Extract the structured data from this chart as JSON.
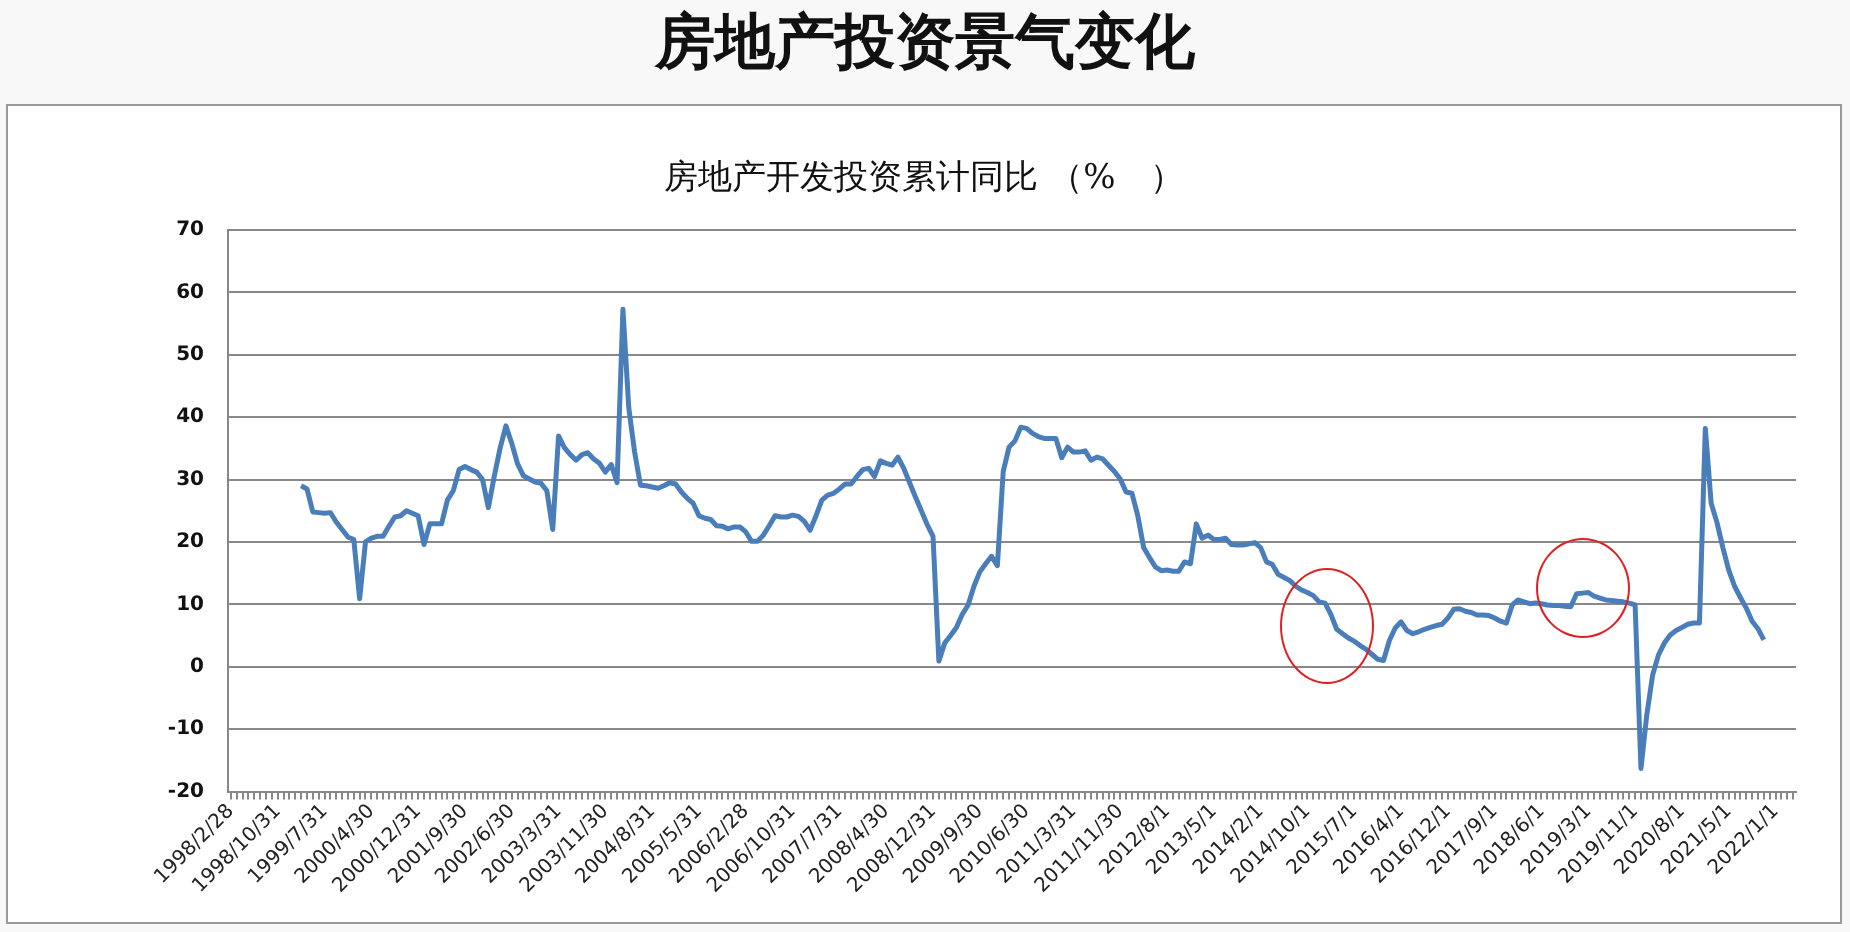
{
  "chart_data": {
    "type": "line",
    "title": "房地产投资景气变化",
    "subtitle": "房地产开发投资累计同比 （%　）",
    "categories": [
      "1998/2/28",
      null,
      null,
      null,
      null,
      null,
      null,
      null,
      "1998/10/31",
      null,
      null,
      null,
      null,
      null,
      null,
      null,
      "1999/7/31",
      null,
      null,
      null,
      null,
      null,
      null,
      null,
      "2000/4/30",
      null,
      null,
      null,
      null,
      null,
      null,
      null,
      "2000/12/31",
      null,
      null,
      null,
      null,
      null,
      null,
      null,
      "2001/9/30",
      null,
      null,
      null,
      null,
      null,
      null,
      null,
      "2002/6/30",
      null,
      null,
      null,
      null,
      null,
      null,
      null,
      "2003/3/31",
      null,
      null,
      null,
      null,
      null,
      null,
      null,
      "2003/11/30",
      null,
      null,
      null,
      null,
      null,
      null,
      null,
      "2004/8/31",
      null,
      null,
      null,
      null,
      null,
      null,
      null,
      "2005/5/31",
      null,
      null,
      null,
      null,
      null,
      null,
      null,
      "2006/2/28",
      null,
      null,
      null,
      null,
      null,
      null,
      null,
      "2006/10/31",
      null,
      null,
      null,
      null,
      null,
      null,
      null,
      "2007/7/31",
      null,
      null,
      null,
      null,
      null,
      null,
      null,
      "2008/4/30",
      null,
      null,
      null,
      null,
      null,
      null,
      null,
      "2008/12/31",
      null,
      null,
      null,
      null,
      null,
      null,
      null,
      "2009/9/30",
      null,
      null,
      null,
      null,
      null,
      null,
      null,
      "2010/6/30",
      null,
      null,
      null,
      null,
      null,
      null,
      null,
      "2011/3/31",
      null,
      null,
      null,
      null,
      null,
      null,
      null,
      "2011/11/30",
      null,
      null,
      null,
      null,
      null,
      null,
      null,
      "2012/8/1",
      null,
      null,
      null,
      null,
      null,
      null,
      null,
      "2013/5/1",
      null,
      null,
      null,
      null,
      null,
      null,
      null,
      "2014/2/1",
      null,
      null,
      null,
      null,
      null,
      null,
      null,
      "2014/10/1",
      null,
      null,
      null,
      null,
      null,
      null,
      null,
      "2015/7/1",
      null,
      null,
      null,
      null,
      null,
      null,
      null,
      "2016/4/1",
      null,
      null,
      null,
      null,
      null,
      null,
      null,
      "2016/12/1",
      null,
      null,
      null,
      null,
      null,
      null,
      null,
      "2017/9/1",
      null,
      null,
      null,
      null,
      null,
      null,
      null,
      "2018/6/1",
      null,
      null,
      null,
      null,
      null,
      null,
      null,
      "2019/3/1",
      null,
      null,
      null,
      null,
      null,
      null,
      null,
      "2019/11/1",
      null,
      null,
      null,
      null,
      null,
      null,
      null,
      "2020/8/1",
      null,
      null,
      null,
      null,
      null,
      null,
      null,
      "2021/5/1",
      null,
      null,
      null,
      null,
      null,
      null,
      null,
      "2022/1/1",
      null,
      null,
      null
    ],
    "series": [
      {
        "color": "#4a7ebb",
        "values": [
          null,
          null,
          null,
          null,
          null,
          null,
          null,
          null,
          null,
          null,
          null,
          null,
          29.0,
          28.5,
          24.8,
          24.7,
          24.6,
          24.7,
          23.2,
          22.0,
          20.8,
          20.4,
          10.9,
          20.0,
          20.6,
          20.9,
          20.9,
          22.5,
          24.0,
          24.2,
          25.0,
          24.6,
          24.2,
          19.6,
          22.9,
          22.9,
          22.9,
          26.7,
          28.2,
          31.6,
          32.1,
          31.6,
          31.2,
          30.0,
          25.5,
          30.5,
          35.0,
          38.6,
          35.8,
          32.5,
          30.6,
          30.1,
          29.6,
          29.4,
          28.2,
          22.0,
          37.0,
          35.1,
          34.0,
          33.1,
          34.0,
          34.3,
          33.3,
          32.6,
          31.2,
          32.4,
          29.5,
          57.3,
          41.5,
          34.4,
          29.1,
          29.0,
          28.8,
          28.6,
          29.0,
          29.5,
          29.3,
          28.0,
          27.0,
          26.2,
          24.2,
          23.8,
          23.6,
          22.6,
          22.5,
          22.1,
          22.4,
          22.4,
          21.6,
          20.1,
          20.1,
          21.1,
          22.6,
          24.2,
          24.0,
          24.0,
          24.3,
          24.1,
          23.3,
          21.9,
          24.2,
          26.7,
          27.5,
          27.8,
          28.5,
          29.3,
          29.3,
          30.5,
          31.6,
          31.8,
          30.5,
          33.0,
          32.6,
          32.3,
          33.6,
          31.8,
          29.5,
          27.2,
          25.0,
          22.8,
          20.9,
          0.9,
          3.8,
          5.0,
          6.3,
          8.4,
          9.9,
          12.9,
          15.2,
          16.5,
          17.7,
          16.2,
          31.3,
          35.2,
          36.2,
          38.4,
          38.2,
          37.4,
          36.9,
          36.6,
          36.6,
          36.6,
          33.5,
          35.2,
          34.4,
          34.4,
          34.6,
          33.1,
          33.6,
          33.3,
          32.3,
          31.3,
          30.1,
          28.0,
          27.8,
          24.2,
          19.1,
          17.5,
          16.0,
          15.4,
          15.5,
          15.3,
          15.3,
          16.8,
          16.5,
          22.9,
          20.6,
          21.1,
          20.4,
          20.4,
          20.6,
          19.6,
          19.5,
          19.5,
          19.7,
          19.9,
          19.1,
          16.8,
          16.4,
          14.8,
          14.3,
          13.8,
          12.9,
          12.3,
          11.9,
          11.4,
          10.4,
          10.2,
          8.4,
          6.0,
          5.3,
          4.6,
          4.1,
          3.4,
          2.8,
          2.0,
          1.2,
          1.0,
          4.2,
          6.2,
          7.2,
          5.8,
          5.3,
          5.6,
          6.0,
          6.3,
          6.6,
          6.8,
          7.8,
          9.2,
          9.3,
          8.9,
          8.7,
          8.3,
          8.3,
          8.2,
          7.8,
          7.3,
          7.0,
          9.9,
          10.7,
          10.4,
          10.1,
          10.2,
          10.1,
          9.9,
          9.8,
          9.8,
          9.7,
          9.6,
          11.7,
          11.8,
          11.9,
          11.3,
          11.0,
          10.7,
          10.6,
          10.5,
          10.4,
          10.2,
          9.9,
          -16.3,
          -7.7,
          -1.3,
          1.9,
          3.8,
          5.1,
          5.8,
          6.3,
          6.8,
          7.0,
          7.0,
          38.2,
          26.2,
          23.1,
          19.1,
          15.5,
          12.9,
          11.1,
          9.4,
          7.3,
          6.1,
          4.3,
          null,
          null,
          null,
          null,
          null
        ]
      }
    ],
    "ylim": [
      -20,
      70
    ],
    "yticks": [
      -20,
      -10,
      0,
      10,
      20,
      30,
      40,
      50,
      60,
      70
    ],
    "grid": "y",
    "legend": false,
    "marker": "none",
    "line_style": "solid"
  }
}
